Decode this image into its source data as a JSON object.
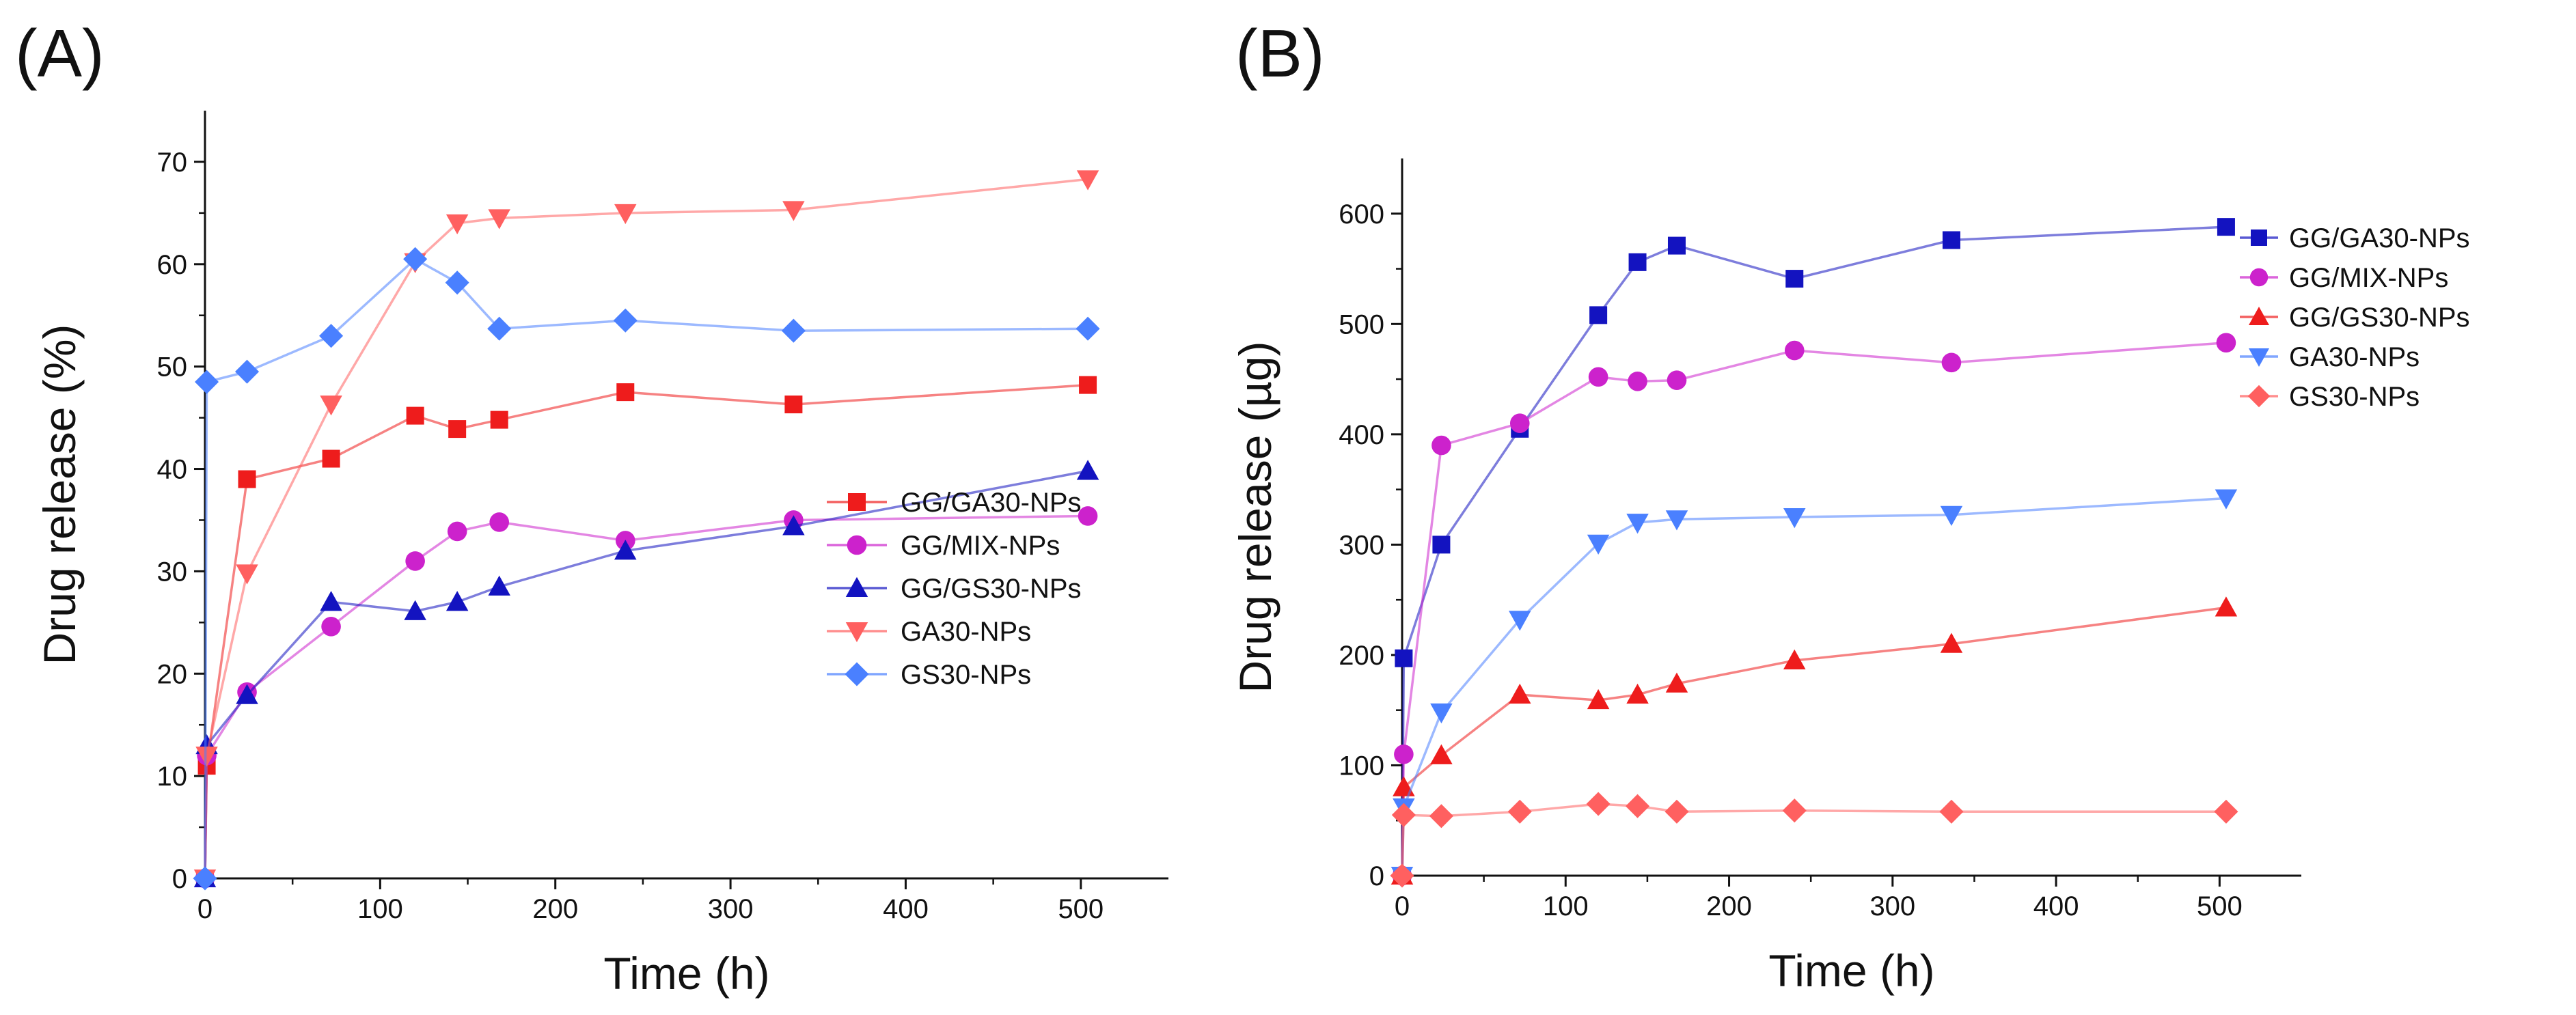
{
  "chart_data": [
    {
      "panel": "(A)",
      "type": "line",
      "title": "",
      "xlabel": "Time (h)",
      "ylabel": "Drug release (%)",
      "xlim": [
        0,
        550
      ],
      "ylim": [
        0,
        75
      ],
      "xticks": [
        0,
        100,
        200,
        300,
        400,
        500
      ],
      "yticks": [
        0,
        10,
        20,
        30,
        40,
        50,
        60,
        70
      ],
      "legend_position": "bottom-right",
      "series": [
        {
          "name": "GG/GA30-NPs",
          "color": "#ee1c1c",
          "marker": "square",
          "x": [
            0,
            1,
            24,
            72,
            120,
            144,
            168,
            240,
            336,
            504
          ],
          "y": [
            0,
            11,
            39,
            41,
            45.2,
            43.9,
            44.8,
            47.5,
            46.3,
            48.2
          ]
        },
        {
          "name": "GG/MIX-NPs",
          "color": "#cc22cc",
          "marker": "circle",
          "x": [
            0,
            1,
            24,
            72,
            120,
            144,
            168,
            240,
            336,
            504
          ],
          "y": [
            0,
            12,
            18.2,
            24.6,
            31,
            33.9,
            34.8,
            33,
            35,
            35.4
          ]
        },
        {
          "name": "GG/GS30-NPs",
          "color": "#1313c0",
          "marker": "triangle-up",
          "x": [
            0,
            1,
            24,
            72,
            120,
            144,
            168,
            240,
            336,
            504
          ],
          "y": [
            0,
            13,
            17.9,
            27,
            26.1,
            27,
            28.5,
            32,
            34.4,
            39.8
          ]
        },
        {
          "name": "GA30-NPs",
          "color": "#ff6060",
          "marker": "triangle-down",
          "x": [
            0,
            1,
            24,
            72,
            120,
            144,
            168,
            240,
            336,
            504
          ],
          "y": [
            0,
            12,
            29.8,
            46.3,
            60.2,
            64,
            64.5,
            65,
            65.3,
            68.3
          ]
        },
        {
          "name": "GS30-NPs",
          "color": "#4a80ff",
          "marker": "diamond",
          "x": [
            0,
            1,
            24,
            72,
            120,
            144,
            168,
            240,
            336,
            504
          ],
          "y": [
            0,
            48.5,
            49.5,
            53,
            60.5,
            58.2,
            53.7,
            54.5,
            53.5,
            53.7
          ]
        }
      ]
    },
    {
      "panel": "(B)",
      "type": "line",
      "title": "",
      "xlabel": "Time (h)",
      "ylabel": "Drug release (µg)",
      "xlim": [
        0,
        550
      ],
      "ylim": [
        0,
        650
      ],
      "xticks": [
        0,
        100,
        200,
        300,
        400,
        500
      ],
      "yticks": [
        0,
        100,
        200,
        300,
        400,
        500,
        600
      ],
      "legend_position": "top-right",
      "series": [
        {
          "name": "GG/GA30-NPs",
          "color": "#1313c0",
          "marker": "square",
          "x": [
            0,
            1,
            24,
            72,
            120,
            144,
            168,
            240,
            336,
            504
          ],
          "y": [
            0,
            197,
            300,
            405,
            508,
            556,
            571,
            541,
            576,
            588
          ]
        },
        {
          "name": "GG/MIX-NPs",
          "color": "#cc22cc",
          "marker": "circle",
          "x": [
            0,
            1,
            24,
            72,
            120,
            144,
            168,
            240,
            336,
            504
          ],
          "y": [
            0,
            110,
            390,
            410,
            452,
            448,
            449,
            476,
            465,
            483
          ]
        },
        {
          "name": "GG/GS30-NPs",
          "color": "#ee1c1c",
          "marker": "triangle-up",
          "x": [
            0,
            1,
            24,
            72,
            120,
            144,
            168,
            240,
            336,
            504
          ],
          "y": [
            0,
            80,
            109,
            164,
            159,
            164,
            174,
            195,
            210,
            243
          ]
        },
        {
          "name": "GA30-NPs",
          "color": "#4a80ff",
          "marker": "triangle-down",
          "x": [
            0,
            1,
            24,
            72,
            120,
            144,
            168,
            240,
            336,
            504
          ],
          "y": [
            0,
            62,
            148,
            232,
            301,
            320,
            323,
            325,
            327,
            342
          ]
        },
        {
          "name": "GS30-NPs",
          "color": "#ff6060",
          "marker": "diamond",
          "x": [
            0,
            1,
            24,
            72,
            120,
            144,
            168,
            240,
            336,
            504
          ],
          "y": [
            0,
            55,
            54,
            58,
            65,
            63,
            58,
            59,
            58,
            58
          ]
        }
      ]
    }
  ]
}
